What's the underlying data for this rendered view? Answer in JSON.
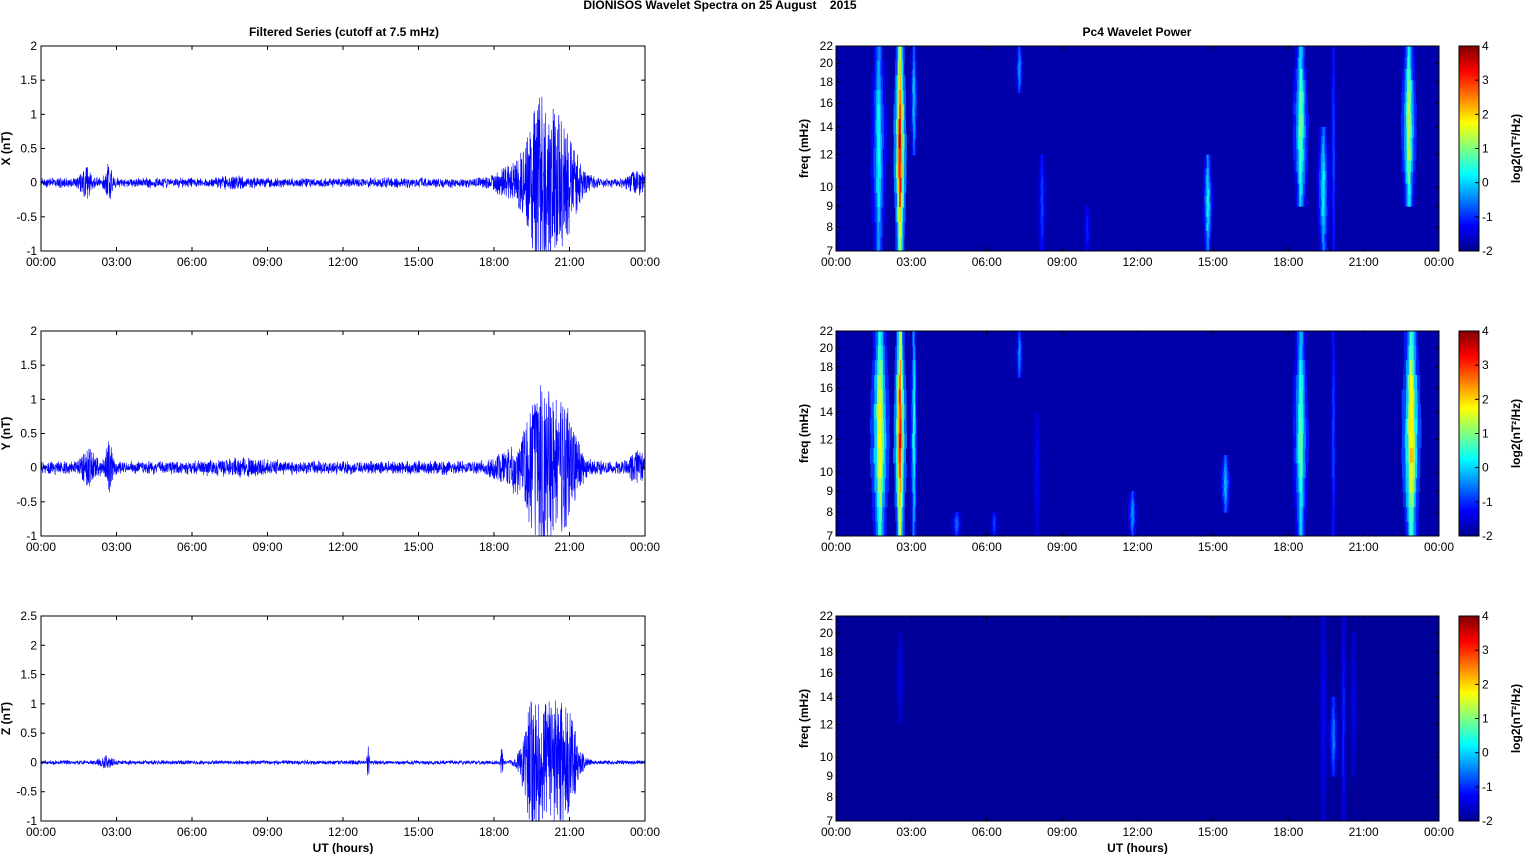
{
  "figure": {
    "title": "DIONISOS Wavelet Spectra on 25 August    2015",
    "left_title": "Filtered Series (cutoff at 7.5 mHz)",
    "right_title": "Pc4 Wavelet Power"
  },
  "chart_data": [
    {
      "type": "line",
      "ylabel": "X (nT)",
      "xlabel": "",
      "xlim": [
        0,
        24
      ],
      "ylim": [
        -1,
        2
      ],
      "yticks": [
        "-1",
        "-0.5",
        "0",
        "0.5",
        "1",
        "1.5",
        "2"
      ],
      "xticks": [
        "00:00",
        "03:00",
        "06:00",
        "09:00",
        "12:00",
        "15:00",
        "18:00",
        "21:00",
        "00:00"
      ],
      "color": "#0000ff",
      "series": [
        {
          "baseline_amplitude": 0.06,
          "bursts": [
            [
              1.8,
              0.25,
              0.38
            ],
            [
              2.7,
              0.15,
              0.5
            ],
            [
              7.6,
              0.5,
              0.1
            ],
            [
              18.9,
              0.8,
              0.5
            ],
            [
              19.8,
              0.5,
              1.8
            ],
            [
              20.2,
              0.8,
              0.9
            ],
            [
              20.8,
              0.6,
              1.45
            ],
            [
              23.7,
              0.35,
              0.3
            ]
          ]
        }
      ]
    },
    {
      "type": "line",
      "ylabel": "Y (nT)",
      "xlabel": "",
      "xlim": [
        0,
        24
      ],
      "ylim": [
        -1,
        2
      ],
      "yticks": [
        "-1",
        "-0.5",
        "0",
        "0.5",
        "1",
        "1.5",
        "2"
      ],
      "xticks": [
        "00:00",
        "03:00",
        "06:00",
        "09:00",
        "12:00",
        "15:00",
        "18:00",
        "21:00",
        "00:00"
      ],
      "color": "#0000ff",
      "series": [
        {
          "baseline_amplitude": 0.08,
          "bursts": [
            [
              1.9,
              0.3,
              0.5
            ],
            [
              2.7,
              0.15,
              0.7
            ],
            [
              8.0,
              1.2,
              0.12
            ],
            [
              18.9,
              0.8,
              0.6
            ],
            [
              19.8,
              0.5,
              1.7
            ],
            [
              20.3,
              0.8,
              0.9
            ],
            [
              20.8,
              0.6,
              1.15
            ],
            [
              23.7,
              0.35,
              0.35
            ]
          ]
        }
      ]
    },
    {
      "type": "line",
      "ylabel": "Z (nT)",
      "xlabel": "UT (hours)",
      "xlim": [
        0,
        24
      ],
      "ylim": [
        -1,
        2.5
      ],
      "yticks": [
        "-1",
        "-0.5",
        "0",
        "0.5",
        "1",
        "1.5",
        "2",
        "2.5"
      ],
      "xticks": [
        "00:00",
        "03:00",
        "06:00",
        "09:00",
        "12:00",
        "15:00",
        "18:00",
        "21:00",
        "00:00"
      ],
      "color": "#0000ff",
      "series": [
        {
          "baseline_amplitude": 0.03,
          "bursts": [
            [
              2.6,
              0.3,
              0.18
            ],
            [
              13.0,
              0.05,
              0.55
            ],
            [
              18.3,
              0.05,
              0.6
            ],
            [
              19.5,
              0.4,
              2.05
            ],
            [
              20.1,
              0.5,
              1.2
            ],
            [
              20.6,
              0.6,
              1.65
            ],
            [
              21.0,
              0.4,
              0.9
            ]
          ]
        }
      ]
    },
    {
      "type": "heatmap",
      "ylabel": "freq (mHz)",
      "xlabel": "",
      "xlim": [
        0,
        24
      ],
      "ylim": [
        7,
        22
      ],
      "yscale": "log",
      "yticks": [
        "7",
        "8",
        "9",
        "10",
        "12",
        "14",
        "16",
        "18",
        "20",
        "22"
      ],
      "xticks": [
        "00:00",
        "03:00",
        "06:00",
        "09:00",
        "12:00",
        "15:00",
        "18:00",
        "21:00",
        "00:00"
      ],
      "colorbar": {
        "range": [
          -2,
          4
        ],
        "ticks": [
          "-2",
          "-1",
          "0",
          "1",
          "2",
          "3",
          "4"
        ],
        "label": "log2(nT²/Hz)"
      },
      "features": [
        [
          1.7,
          0.12,
          7,
          22,
          0.5
        ],
        [
          2.55,
          0.1,
          7,
          22,
          3.8
        ],
        [
          3.1,
          0.06,
          12,
          22,
          0.0
        ],
        [
          7.3,
          0.06,
          17,
          22,
          -0.2
        ],
        [
          8.2,
          0.07,
          7,
          12,
          -0.8
        ],
        [
          10.0,
          0.06,
          7,
          9,
          -1.0
        ],
        [
          14.8,
          0.08,
          7,
          12,
          0.4
        ],
        [
          18.5,
          0.12,
          9,
          22,
          1.2
        ],
        [
          19.4,
          0.1,
          7,
          14,
          0.3
        ],
        [
          19.8,
          0.05,
          7,
          22,
          -0.8
        ],
        [
          22.8,
          0.12,
          9,
          22,
          1.6
        ]
      ]
    },
    {
      "type": "heatmap",
      "ylabel": "freq (mHz)",
      "xlabel": "",
      "xlim": [
        0,
        24
      ],
      "ylim": [
        7,
        22
      ],
      "yscale": "log",
      "yticks": [
        "7",
        "8",
        "9",
        "10",
        "12",
        "14",
        "16",
        "18",
        "20",
        "22"
      ],
      "xticks": [
        "00:00",
        "03:00",
        "06:00",
        "09:00",
        "12:00",
        "15:00",
        "18:00",
        "21:00",
        "00:00"
      ],
      "colorbar": {
        "range": [
          -2,
          4
        ],
        "ticks": [
          "-2",
          "-1",
          "0",
          "1",
          "2",
          "3",
          "4"
        ],
        "label": "log2(nT²/Hz)"
      },
      "features": [
        [
          1.75,
          0.15,
          7,
          22,
          2.0
        ],
        [
          2.55,
          0.1,
          7,
          22,
          3.5
        ],
        [
          3.1,
          0.06,
          7,
          22,
          0.5
        ],
        [
          4.8,
          0.08,
          7,
          8,
          -0.5
        ],
        [
          6.3,
          0.06,
          7,
          8,
          -0.8
        ],
        [
          7.3,
          0.06,
          17,
          22,
          -0.3
        ],
        [
          8.0,
          0.06,
          7,
          14,
          -1.2
        ],
        [
          11.8,
          0.07,
          7,
          9,
          -0.2
        ],
        [
          15.5,
          0.08,
          8,
          11,
          0.0
        ],
        [
          18.5,
          0.12,
          7,
          22,
          1.0
        ],
        [
          19.8,
          0.05,
          7,
          22,
          -0.8
        ],
        [
          22.9,
          0.15,
          7,
          22,
          2.3
        ]
      ]
    },
    {
      "type": "heatmap",
      "ylabel": "freq (mHz)",
      "xlabel": "UT (hours)",
      "xlim": [
        0,
        24
      ],
      "ylim": [
        7,
        22
      ],
      "yscale": "log",
      "yticks": [
        "7",
        "8",
        "9",
        "10",
        "12",
        "14",
        "16",
        "18",
        "20",
        "22"
      ],
      "xticks": [
        "00:00",
        "03:00",
        "06:00",
        "09:00",
        "12:00",
        "15:00",
        "18:00",
        "21:00",
        "00:00"
      ],
      "colorbar": {
        "range": [
          -2,
          4
        ],
        "ticks": [
          "-2",
          "-1",
          "0",
          "1",
          "2",
          "3",
          "4"
        ],
        "label": "log2(nT²/Hz)"
      },
      "features": [
        [
          2.55,
          0.06,
          12,
          20,
          -1.3
        ],
        [
          19.4,
          0.07,
          7,
          22,
          -1.2
        ],
        [
          19.8,
          0.08,
          9,
          14,
          -0.4
        ],
        [
          20.2,
          0.05,
          7,
          22,
          -1.0
        ],
        [
          20.6,
          0.06,
          9,
          20,
          -1.3
        ]
      ]
    }
  ]
}
